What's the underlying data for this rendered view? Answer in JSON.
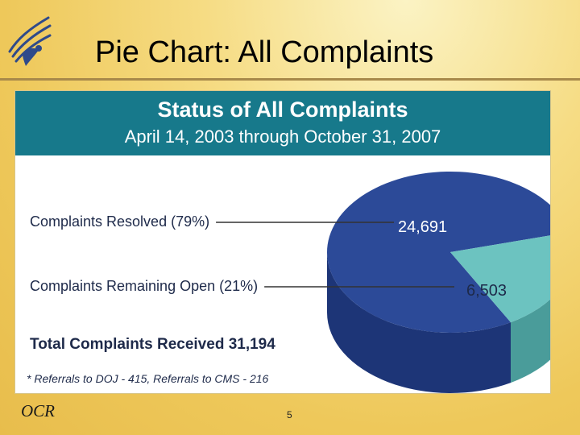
{
  "slide": {
    "title": "Pie Chart: All Complaints",
    "footer_left": "OCR",
    "page_number": "5"
  },
  "chart_data": {
    "type": "pie",
    "title": "Status of All Complaints",
    "subtitle": "April 14, 2003 through October 31, 2007",
    "slices": [
      {
        "label": "Complaints Resolved (79%)",
        "value": 24691,
        "value_label": "24,691",
        "percent": 79,
        "color": "#2c4a98"
      },
      {
        "label": "Complaints Remaining Open (21%)",
        "value": 6503,
        "value_label": "6,503",
        "percent": 21,
        "color": "#6cc3c0"
      }
    ],
    "total_label": "Total Complaints Received 31,194",
    "footnote": "* Referrals to DOJ - 415, Referrals to CMS - 216",
    "colors": {
      "header": "#17798b",
      "resolved_side": "#1d3577",
      "open_side": "#4a9c9a"
    }
  }
}
